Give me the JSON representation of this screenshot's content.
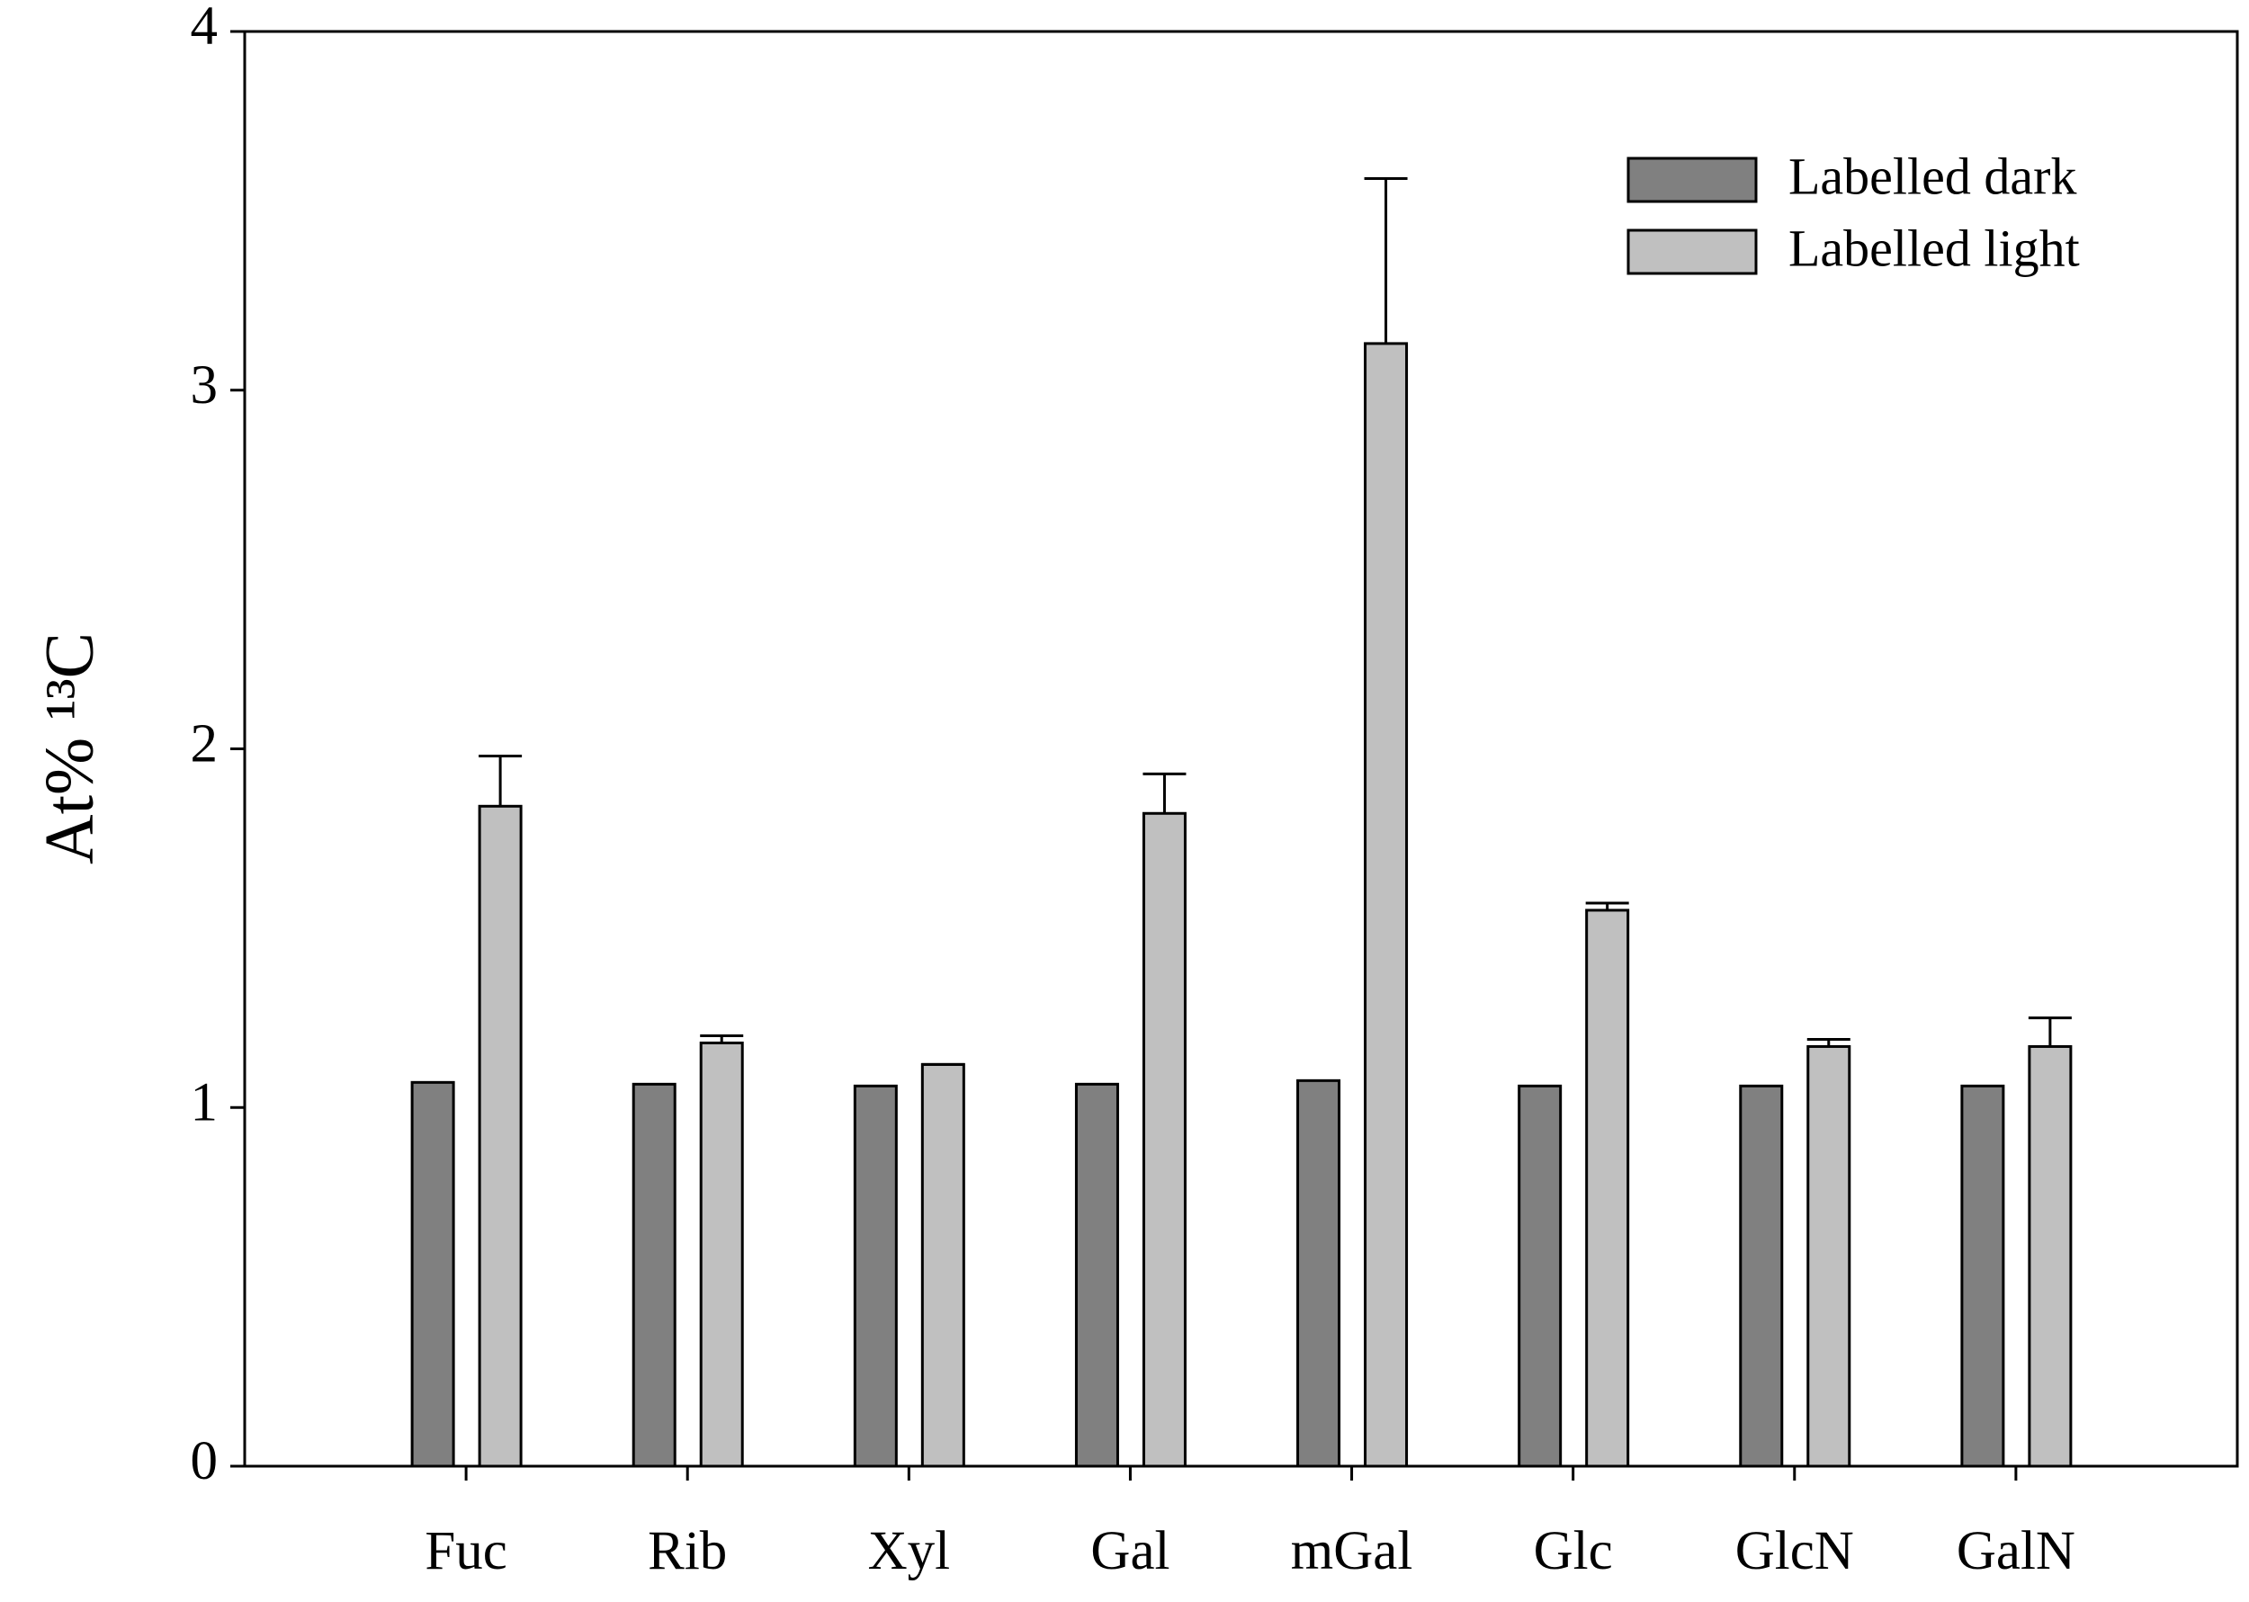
{
  "chart_data": {
    "type": "bar",
    "ylabel": "At% ¹³C",
    "categories": [
      "Fuc",
      "Rib",
      "Xyl",
      "Gal",
      "mGal",
      "Glc",
      "GlcN",
      "GalN"
    ],
    "series": [
      {
        "name": "Labelled dark",
        "color": "#808080",
        "values": [
          1.07,
          1.065,
          1.06,
          1.065,
          1.075,
          1.06,
          1.06,
          1.06
        ]
      },
      {
        "name": "Labelled light",
        "color": "#c0c0c0",
        "values": [
          1.84,
          1.18,
          1.12,
          1.82,
          3.13,
          1.55,
          1.17,
          1.17
        ],
        "errors": [
          0.14,
          0.02,
          0,
          0.11,
          0.46,
          0.02,
          0.02,
          0.08
        ]
      }
    ],
    "ylim": [
      0,
      4
    ],
    "yticks": [
      0,
      1,
      2,
      3,
      4
    ],
    "legend": "upper right"
  }
}
